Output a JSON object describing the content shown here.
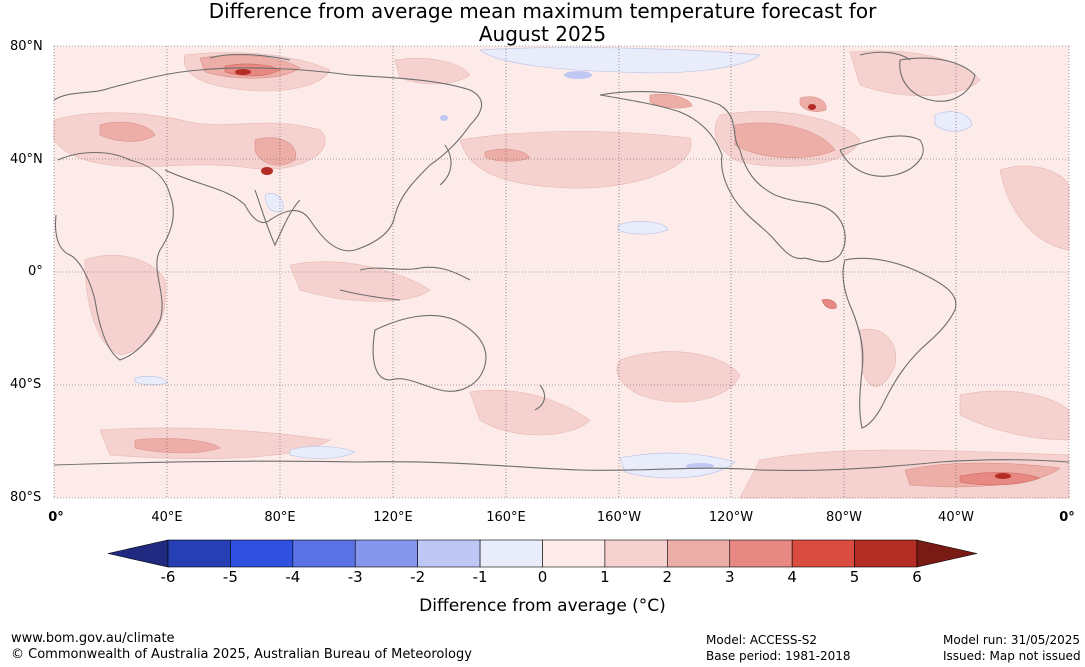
{
  "title": {
    "line1": "Difference from average mean maximum temperature forecast for",
    "line2": "August 2025"
  },
  "map": {
    "lat_labels": [
      "80°N",
      "40°N",
      "0°",
      "40°S",
      "80°S"
    ],
    "lon_labels": [
      "0°",
      "40°E",
      "80°E",
      "120°E",
      "160°E",
      "160°W",
      "120°W",
      "80°W",
      "40°W",
      "0°"
    ],
    "background_color": "#fcebe8",
    "coastline_color": "#6e6e6e"
  },
  "colorbar": {
    "ticks": [
      "-6",
      "-5",
      "-4",
      "-3",
      "-2",
      "-1",
      "0",
      "1",
      "2",
      "3",
      "4",
      "5",
      "6"
    ],
    "colors": [
      "#1f2a80",
      "#273fb4",
      "#3050e0",
      "#5a72e4",
      "#8596ec",
      "#bfc8f4",
      "#e8ecfb",
      "#fcebe8",
      "#f5d2cf",
      "#eeaea8",
      "#e78882",
      "#da4c40",
      "#b32d24",
      "#7a1a14"
    ],
    "label": "Difference from average (°C)"
  },
  "footer": {
    "website": "www.bom.gov.au/climate",
    "copyright": "© Commonwealth of Australia 2025, Australian Bureau of Meteorology",
    "model": "Model: ACCESS-S2",
    "base_period": "Base period: 1981-2018",
    "model_run": "Model run: 31/05/2025",
    "issued": "Issued: Map not issued"
  }
}
